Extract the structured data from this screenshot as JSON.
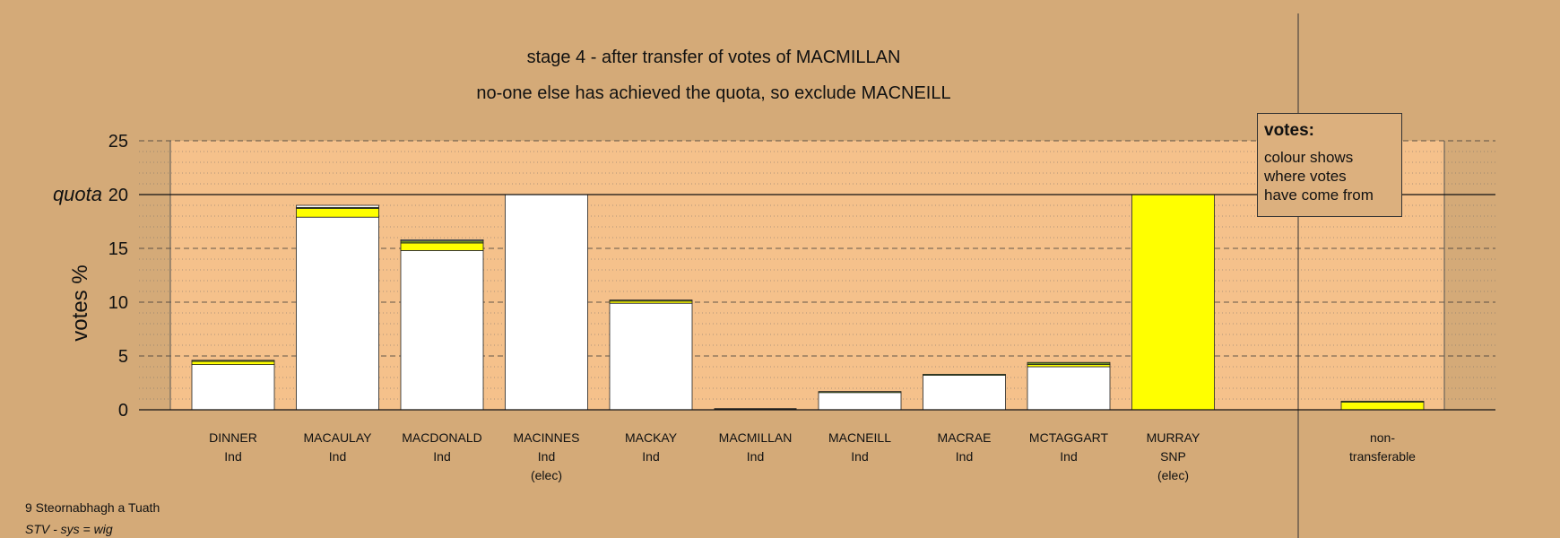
{
  "titles": {
    "line1": "stage 4 - after transfer of votes of MACMILLAN",
    "line2": "no-one else has achieved the quota, so exclude MACNEILL"
  },
  "legend": {
    "title": "votes:",
    "lines": [
      "colour shows",
      "where votes",
      "have come from"
    ]
  },
  "footer": {
    "line1": "9 Steornabhagh a Tuath",
    "line2": "STV - sys = wig"
  },
  "colors": {
    "background": "#d4aa78",
    "plot_area": "#f5c18b",
    "original_votes": "#ffffff",
    "transferred_yellow": "#ffff00",
    "transferred_green": "#6b8e23"
  },
  "chart_data": {
    "type": "bar",
    "stacked": true,
    "ylabel": "votes %",
    "ylim": [
      0,
      25
    ],
    "yticks": [
      "0",
      "5",
      "10",
      "15",
      "20",
      "25"
    ],
    "quota": {
      "label": "quota",
      "value": 20
    },
    "grid": "dashed major every 5, dotted minor every 1",
    "legend_position": "top-right",
    "categories": [
      {
        "name": "DINNER",
        "party": "Ind",
        "note": ""
      },
      {
        "name": "MACAULAY",
        "party": "Ind",
        "note": ""
      },
      {
        "name": "MACDONALD",
        "party": "Ind",
        "note": ""
      },
      {
        "name": "MACINNES",
        "party": "Ind",
        "note": "(elec)"
      },
      {
        "name": "MACKAY",
        "party": "Ind",
        "note": ""
      },
      {
        "name": "MACMILLAN",
        "party": "Ind",
        "note": ""
      },
      {
        "name": "MACNEILL",
        "party": "Ind",
        "note": ""
      },
      {
        "name": "MACRAE",
        "party": "Ind",
        "note": ""
      },
      {
        "name": "MCTAGGART",
        "party": "Ind",
        "note": ""
      },
      {
        "name": "MURRAY",
        "party": "SNP",
        "note": "(elec)"
      }
    ],
    "series": [
      {
        "color": "#ffffff",
        "values": [
          4.2,
          17.9,
          14.8,
          20.0,
          9.9,
          0.0,
          1.6,
          3.2,
          4.0,
          0.0
        ]
      },
      {
        "color": "#ffff00",
        "values": [
          0.3,
          0.8,
          0.7,
          0.0,
          0.2,
          0.0,
          0.0,
          0.0,
          0.2,
          20.0
        ]
      },
      {
        "color": "#6b8e23",
        "values": [
          0.1,
          0.1,
          0.2,
          0.0,
          0.1,
          0.0,
          0.1,
          0.1,
          0.2,
          0.0
        ]
      },
      {
        "color": "#ffffff",
        "values": [
          0.0,
          0.2,
          0.1,
          0.0,
          0.0,
          0.0,
          0.0,
          0.0,
          0.0,
          0.0
        ]
      }
    ],
    "nontransferable": {
      "label_lines": [
        "non-",
        "transferable"
      ],
      "segments": [
        {
          "color": "#ffff00",
          "value": 0.7
        },
        {
          "color": "#6b8e23",
          "value": 0.1
        }
      ]
    }
  }
}
